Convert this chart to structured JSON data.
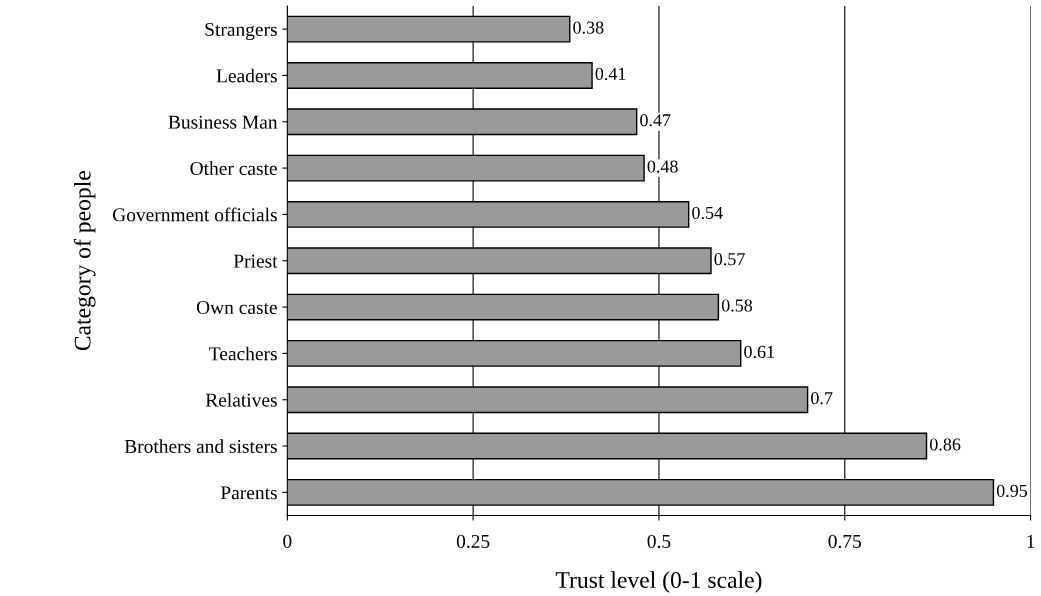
{
  "chart_data": {
    "type": "bar",
    "orientation": "horizontal",
    "xlabel": "Trust level (0-1 scale)",
    "ylabel": "Category of people",
    "categories": [
      "Strangers",
      "Leaders",
      "Business Man",
      "Other caste",
      "Government officials",
      "Priest",
      "Own caste",
      "Teachers",
      "Relatives",
      "Brothers and sisters",
      "Parents"
    ],
    "values": [
      0.38,
      0.41,
      0.47,
      0.48,
      0.54,
      0.57,
      0.58,
      0.61,
      0.7,
      0.86,
      0.95
    ],
    "color": "#9a9a9a",
    "xlim": [
      0,
      1
    ],
    "xticks": [
      0,
      0.25,
      0.5,
      0.75,
      1
    ],
    "grid": "x",
    "data_labels": true
  }
}
